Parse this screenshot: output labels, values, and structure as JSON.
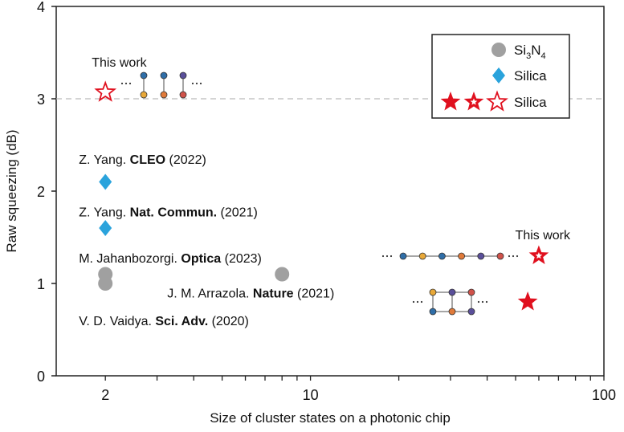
{
  "chart_data": {
    "type": "scatter",
    "title": "",
    "xlabel": "Size of cluster states on a photonic chip",
    "ylabel": "Raw squeezing (dB)",
    "xscale": "log",
    "xlim": [
      1.36,
      100
    ],
    "ylim": [
      0,
      4
    ],
    "xticks": [
      2,
      10,
      100
    ],
    "yticks": [
      0,
      1,
      2,
      3,
      4
    ],
    "grid": false,
    "reference_line": {
      "y": 3,
      "style": "dashed",
      "color": "#bbbbbb"
    },
    "legend": {
      "placement": "top-right",
      "entries": [
        {
          "label_main": "Si",
          "sub1": "3",
          "mid": "N",
          "sub2": "4",
          "marker": "circle",
          "color": "#a0a0a0"
        },
        {
          "label": "Silica",
          "marker": "diamond",
          "color": "#2aa3dc"
        },
        {
          "label": "Silica",
          "marker": "stars (filled, half, hollow)",
          "color": "#e0101e"
        }
      ]
    },
    "series": [
      {
        "material": "Si3N4",
        "marker": "circle",
        "color": "#a0a0a0",
        "points": [
          {
            "x": 2,
            "y": 1.1
          },
          {
            "x": 2,
            "y": 1.0
          },
          {
            "x": 8,
            "y": 1.1
          }
        ]
      },
      {
        "material": "Silica",
        "marker": "diamond",
        "color": "#2aa3dc",
        "points": [
          {
            "x": 2,
            "y": 2.1
          },
          {
            "x": 2,
            "y": 1.6
          }
        ]
      },
      {
        "material": "Silica (this work)",
        "marker": "star",
        "color": "#e0101e",
        "points": [
          {
            "x": 2,
            "y": 3.07,
            "fill": "hollow"
          },
          {
            "x": 60,
            "y": 1.3,
            "fill": "half"
          },
          {
            "x": 55,
            "y": 0.8,
            "fill": "filled"
          }
        ]
      }
    ],
    "annotations": [
      {
        "pre": "",
        "bold": "",
        "post": "This work",
        "x": 2,
        "y": 3.4
      },
      {
        "pre": "Z. Yang. ",
        "bold": "CLEO",
        "post": " (2022)",
        "x": 2,
        "y": 2.35
      },
      {
        "pre": "Z. Yang. ",
        "bold": "Nat. Commun.",
        "post": " (2021)",
        "x": 2,
        "y": 1.78
      },
      {
        "pre": "M. Jahanbozorgi. ",
        "bold": "Optica",
        "post": " (2023)",
        "x": 2,
        "y": 1.28
      },
      {
        "pre": "J. M. Arrazola. ",
        "bold": "Nature",
        "post": " (2021)",
        "x": 8,
        "y": 0.9
      },
      {
        "pre": "V. D. Vaidya. ",
        "bold": "Sci. Adv.",
        "post": " (2020)",
        "x": 2,
        "y": 0.6
      },
      {
        "pre": "",
        "bold": "",
        "post": "This work",
        "x": 60,
        "y": 1.53
      }
    ],
    "node_colors": [
      "#2f6ea8",
      "#e8a838",
      "#e07a3a",
      "#5a4f9a",
      "#d0524a"
    ]
  }
}
